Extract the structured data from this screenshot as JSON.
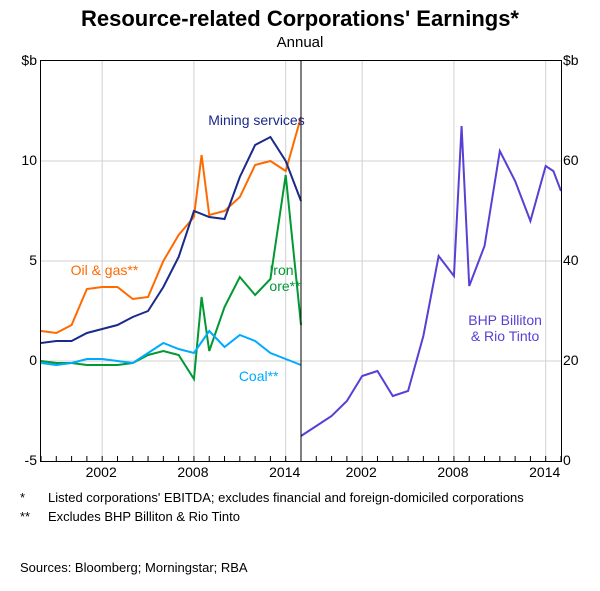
{
  "title": "Resource-related Corporations' Earnings*",
  "subtitle": "Annual",
  "left_panel": {
    "ylabel_top": "$b",
    "ylim": [
      -5,
      15
    ],
    "yticks": [
      -5,
      0,
      5,
      10
    ],
    "xlim": [
      1998,
      2015
    ],
    "xticks": [
      2002,
      2008,
      2014
    ],
    "grid_color": "#d0d0d0",
    "series": [
      {
        "name": "Oil & gas**",
        "color": "#ff6a00",
        "label_x": 2000,
        "label_y": 4.5,
        "data": [
          [
            1998,
            1.5
          ],
          [
            1999,
            1.4
          ],
          [
            2000,
            1.8
          ],
          [
            2001,
            3.6
          ],
          [
            2002,
            3.7
          ],
          [
            2003,
            3.7
          ],
          [
            2004,
            3.1
          ],
          [
            2005,
            3.2
          ],
          [
            2006,
            5.0
          ],
          [
            2007,
            6.3
          ],
          [
            2008,
            7.2
          ],
          [
            2008.5,
            10.3
          ],
          [
            2009,
            7.3
          ],
          [
            2010,
            7.5
          ],
          [
            2011,
            8.2
          ],
          [
            2012,
            9.8
          ],
          [
            2013,
            10.0
          ],
          [
            2014,
            9.5
          ],
          [
            2015,
            12.2
          ]
        ]
      },
      {
        "name": "Mining services",
        "color": "#1a2a8a",
        "label_x": 2009,
        "label_y": 12.0,
        "data": [
          [
            1998,
            0.9
          ],
          [
            1999,
            1.0
          ],
          [
            2000,
            1.0
          ],
          [
            2001,
            1.4
          ],
          [
            2002,
            1.6
          ],
          [
            2003,
            1.8
          ],
          [
            2004,
            2.2
          ],
          [
            2005,
            2.5
          ],
          [
            2006,
            3.7
          ],
          [
            2007,
            5.2
          ],
          [
            2008,
            7.5
          ],
          [
            2009,
            7.2
          ],
          [
            2010,
            7.1
          ],
          [
            2011,
            9.2
          ],
          [
            2012,
            10.8
          ],
          [
            2013,
            11.2
          ],
          [
            2014,
            10.0
          ],
          [
            2015,
            8.0
          ]
        ]
      },
      {
        "name": "Iron ore**",
        "color": "#009933",
        "label_x": 2013,
        "label_y": 4.5,
        "data": [
          [
            1998,
            0.0
          ],
          [
            1999,
            -0.1
          ],
          [
            2000,
            -0.1
          ],
          [
            2001,
            -0.2
          ],
          [
            2002,
            -0.2
          ],
          [
            2003,
            -0.2
          ],
          [
            2004,
            -0.1
          ],
          [
            2005,
            0.3
          ],
          [
            2006,
            0.5
          ],
          [
            2007,
            0.3
          ],
          [
            2008,
            -0.9
          ],
          [
            2008.5,
            3.2
          ],
          [
            2009,
            0.5
          ],
          [
            2010,
            2.7
          ],
          [
            2011,
            4.2
          ],
          [
            2012,
            3.3
          ],
          [
            2013,
            4.1
          ],
          [
            2014,
            9.3
          ],
          [
            2015,
            1.8
          ]
        ]
      },
      {
        "name": "Coal**",
        "color": "#00aaff",
        "label_x": 2011,
        "label_y": -0.8,
        "data": [
          [
            1998,
            -0.1
          ],
          [
            1999,
            -0.2
          ],
          [
            2000,
            -0.1
          ],
          [
            2001,
            0.1
          ],
          [
            2002,
            0.1
          ],
          [
            2003,
            0.0
          ],
          [
            2004,
            -0.1
          ],
          [
            2005,
            0.4
          ],
          [
            2006,
            0.9
          ],
          [
            2007,
            0.6
          ],
          [
            2008,
            0.4
          ],
          [
            2009,
            1.5
          ],
          [
            2010,
            0.7
          ],
          [
            2011,
            1.3
          ],
          [
            2012,
            1.0
          ],
          [
            2013,
            0.4
          ],
          [
            2014,
            0.1
          ],
          [
            2015,
            -0.2
          ]
        ]
      }
    ]
  },
  "right_panel": {
    "ylabel_top": "$b",
    "ylim": [
      0,
      80
    ],
    "yticks": [
      0,
      20,
      40,
      60
    ],
    "xlim": [
      1998,
      2015
    ],
    "xticks": [
      2002,
      2008,
      2014
    ],
    "grid_color": "#d0d0d0",
    "series": [
      {
        "name": "BHP Billiton & Rio Tinto",
        "color": "#5a3fd4",
        "label_x": 2009,
        "label_y": 28,
        "data": [
          [
            1998,
            5
          ],
          [
            1999,
            7
          ],
          [
            2000,
            9
          ],
          [
            2001,
            12
          ],
          [
            2002,
            17
          ],
          [
            2003,
            18
          ],
          [
            2004,
            13
          ],
          [
            2005,
            14
          ],
          [
            2006,
            25
          ],
          [
            2007,
            41
          ],
          [
            2008,
            37
          ],
          [
            2008.5,
            67
          ],
          [
            2009,
            35
          ],
          [
            2010,
            43
          ],
          [
            2011,
            62
          ],
          [
            2012,
            56
          ],
          [
            2013,
            48
          ],
          [
            2014,
            59
          ],
          [
            2014.5,
            58
          ],
          [
            2015,
            54
          ]
        ]
      }
    ]
  },
  "footnotes": [
    {
      "mark": "*",
      "text": "Listed corporations' EBITDA; excludes financial and foreign-domiciled corporations"
    },
    {
      "mark": "**",
      "text": "Excludes BHP Billiton & Rio Tinto"
    }
  ],
  "sources": "Sources:  Bloomberg; Morningstar; RBA"
}
